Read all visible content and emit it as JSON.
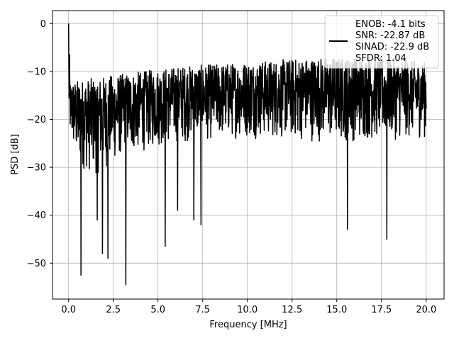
{
  "chart_data": {
    "type": "line",
    "title": "",
    "xlabel": "Frequency [MHz]",
    "ylabel": "PSD [dB]",
    "xlim": [
      -0.9,
      21.0
    ],
    "ylim": [
      -57.5,
      2.7
    ],
    "xticks": [
      0.0,
      2.5,
      5.0,
      7.5,
      10.0,
      12.5,
      15.0,
      17.5,
      20.0
    ],
    "xtick_labels": [
      "0.0",
      "2.5",
      "5.0",
      "7.5",
      "10.0",
      "12.5",
      "15.0",
      "17.5",
      "20.0"
    ],
    "yticks": [
      0,
      -10,
      -20,
      -30,
      -40,
      -50
    ],
    "ytick_labels": [
      "0",
      "−10",
      "−20",
      "−30",
      "−40",
      "−50"
    ],
    "grid": true,
    "legend_position": "top-right",
    "series": [
      {
        "name": "ENOB: -4.1 bits\nSNR: -22.87 dB\nSINAD: -22.9 dB\nSFDR: 1.04",
        "color": "#000000",
        "x_range": [
          0.0,
          20.0
        ],
        "description_of_shape": "dense noise spectrum",
        "envelope_upper": [
          [
            0.0,
            0.0
          ],
          [
            0.1,
            -12
          ],
          [
            2.0,
            -11
          ],
          [
            4.0,
            -10
          ],
          [
            6.0,
            -9
          ],
          [
            10.0,
            -8
          ],
          [
            14.0,
            -7
          ],
          [
            17.0,
            -7
          ],
          [
            20.0,
            -8
          ]
        ],
        "envelope_lower": [
          [
            0.1,
            -25
          ],
          [
            0.5,
            -30
          ],
          [
            1.5,
            -32
          ],
          [
            3.0,
            -28
          ],
          [
            6.0,
            -25
          ],
          [
            10.0,
            -24
          ],
          [
            15.0,
            -25
          ],
          [
            20.0,
            -24
          ]
        ],
        "notable_dips": [
          [
            0.7,
            -52.5
          ],
          [
            1.6,
            -41
          ],
          [
            1.9,
            -48
          ],
          [
            2.2,
            -49
          ],
          [
            3.2,
            -54.5
          ],
          [
            5.4,
            -46.5
          ],
          [
            6.1,
            -39
          ],
          [
            7.0,
            -41
          ],
          [
            7.4,
            -42
          ],
          [
            15.6,
            -43
          ],
          [
            17.8,
            -45
          ]
        ]
      }
    ],
    "legend_lines": [
      "ENOB: -4.1 bits",
      "SNR: -22.87 dB",
      "SINAD: -22.9 dB",
      "SFDR: 1.04"
    ]
  }
}
